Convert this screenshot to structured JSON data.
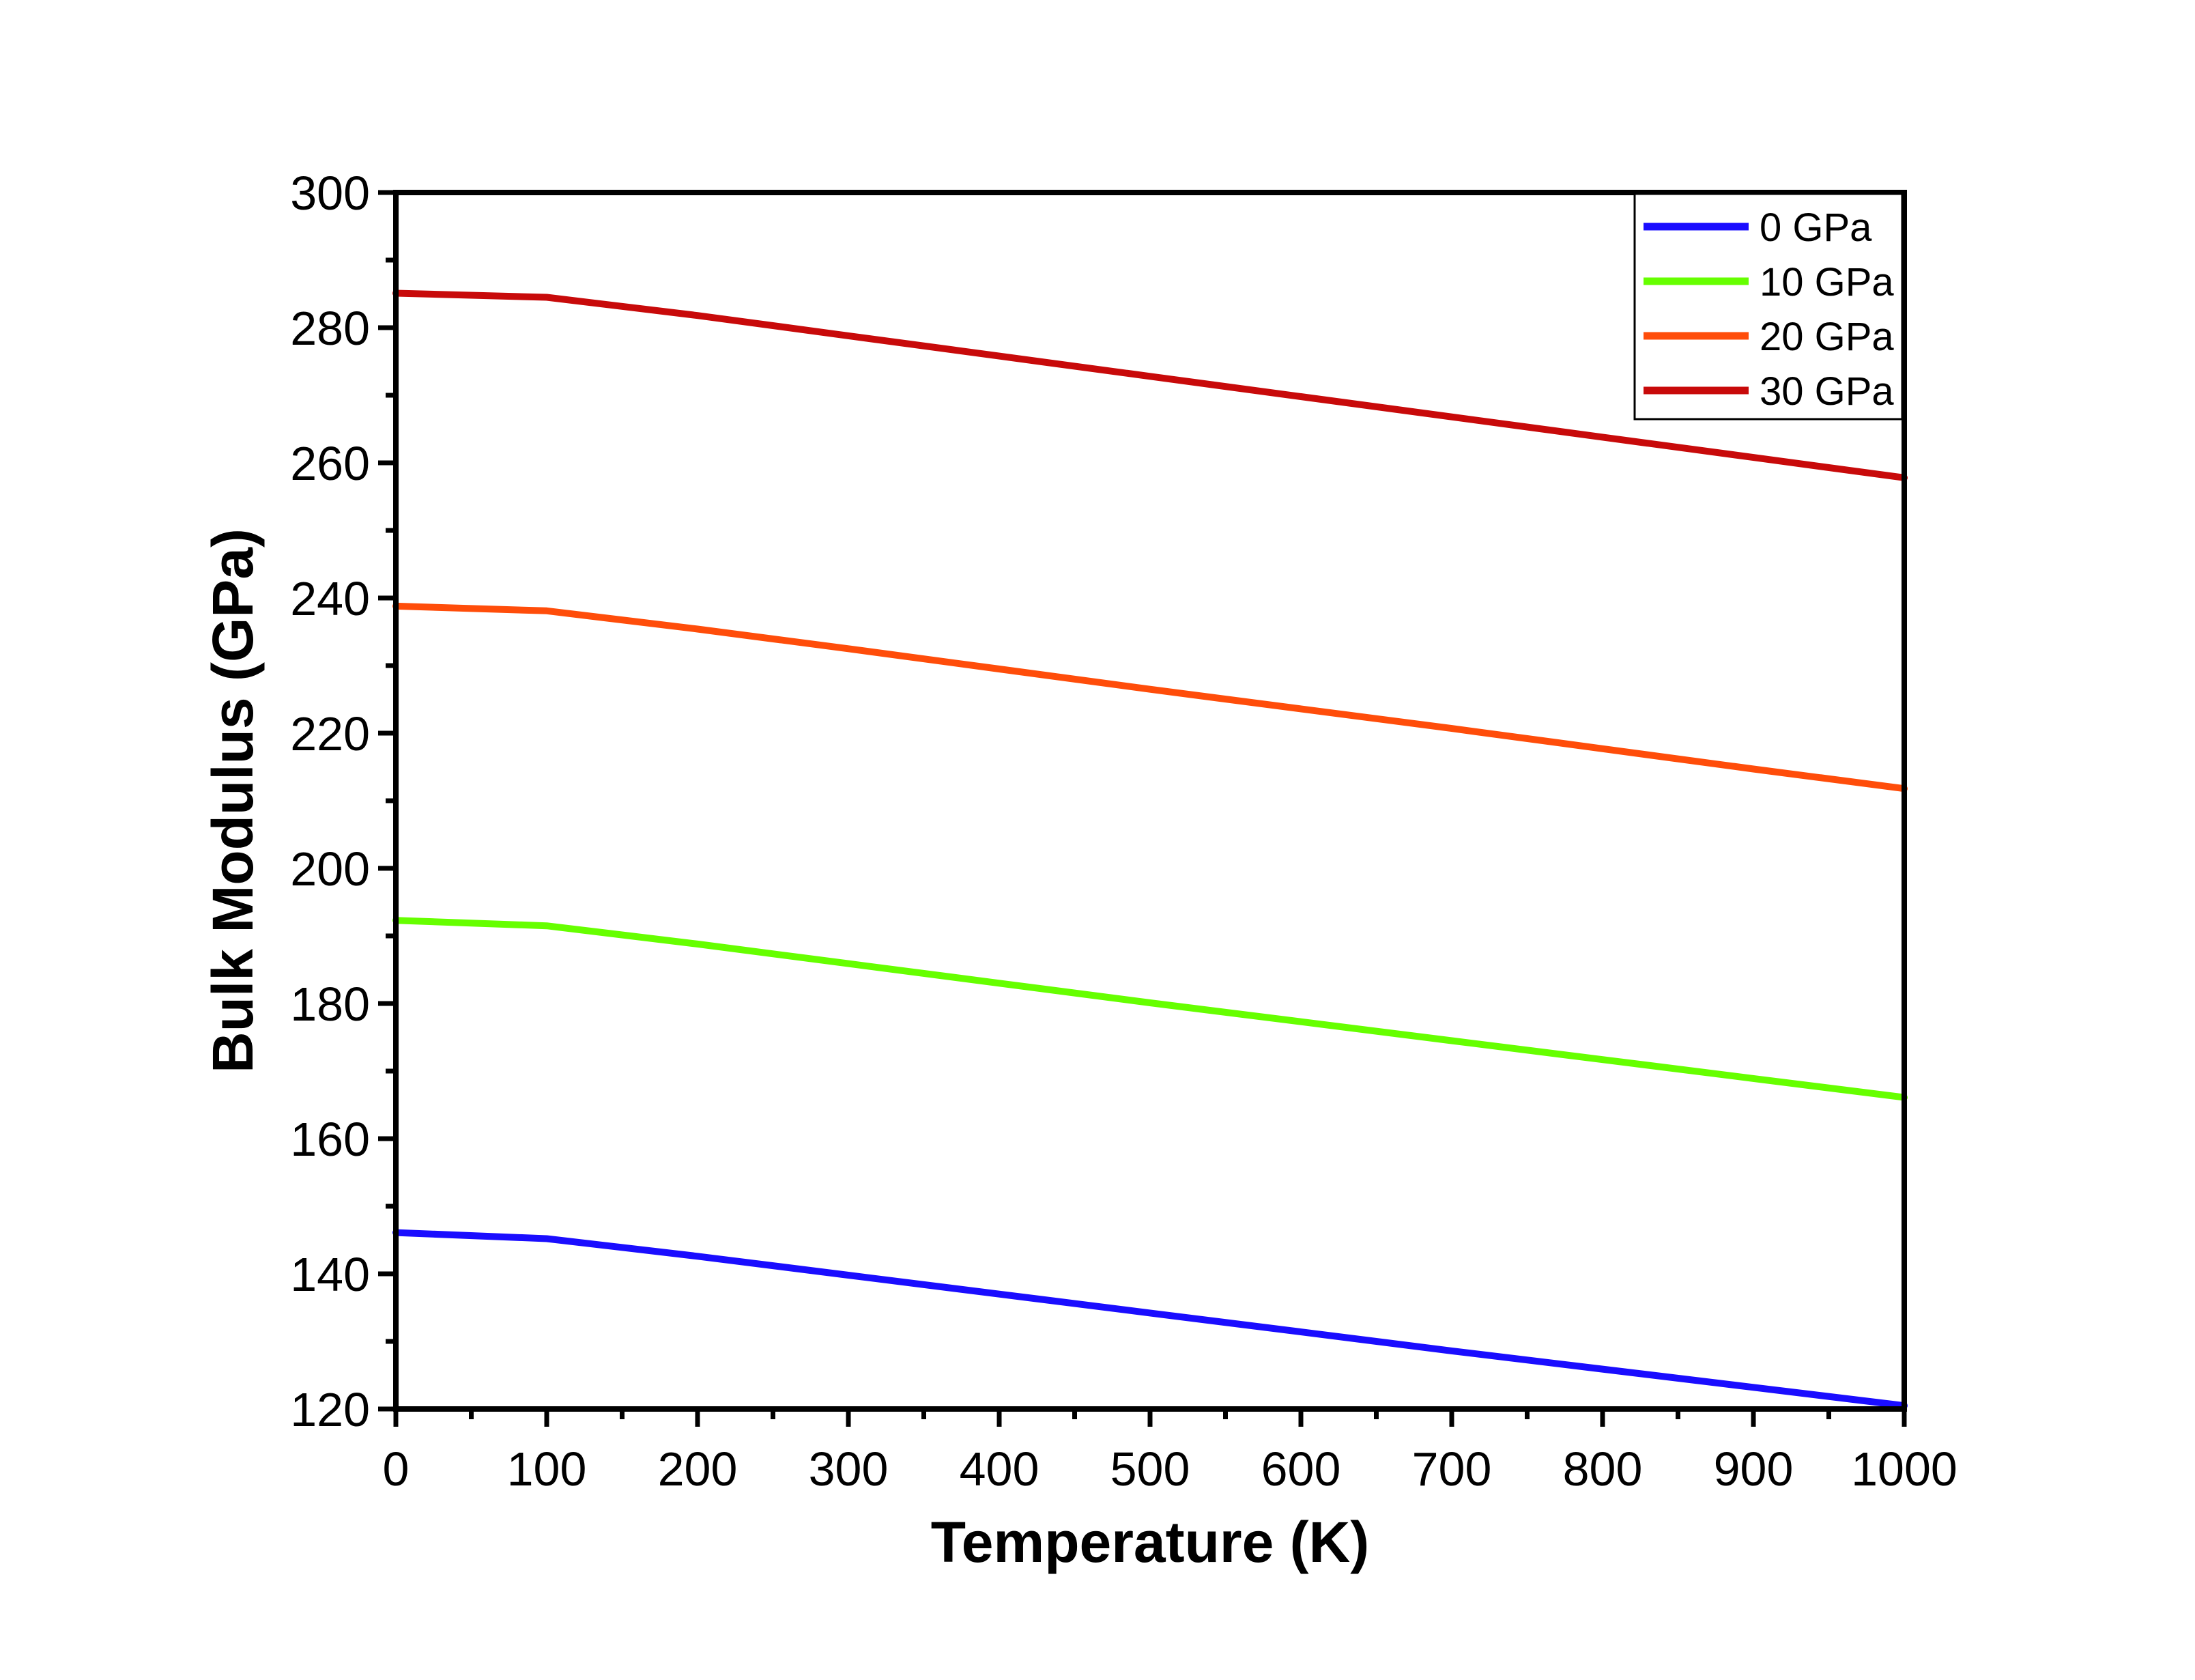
{
  "chart_data": {
    "type": "line",
    "title": "",
    "xlabel": "Temperature (K)",
    "ylabel": "Bulk Modulus (GPa)",
    "xlim": [
      0,
      1000
    ],
    "ylim": [
      120,
      300
    ],
    "x_ticks": [
      "0",
      "100",
      "200",
      "300",
      "400",
      "500",
      "600",
      "700",
      "800",
      "900",
      "1000"
    ],
    "y_ticks": [
      "120",
      "140",
      "160",
      "180",
      "200",
      "220",
      "240",
      "260",
      "280",
      "300"
    ],
    "grid": false,
    "legend_position": "top-right",
    "x": [
      0,
      100,
      200,
      300,
      400,
      500,
      600,
      700,
      800,
      900,
      1000
    ],
    "series": [
      {
        "name": "0 GPa",
        "color": "#1a0dff",
        "values": [
          146.1,
          145.2,
          142.6,
          139.8,
          137.0,
          134.2,
          131.4,
          128.6,
          125.9,
          123.2,
          120.5
        ]
      },
      {
        "name": "10 GPa",
        "color": "#66ff00",
        "values": [
          192.3,
          191.5,
          188.8,
          185.9,
          183.0,
          180.1,
          177.3,
          174.5,
          171.7,
          168.9,
          166.1
        ]
      },
      {
        "name": "20 GPa",
        "color": "#ff4d0a",
        "values": [
          238.8,
          238.1,
          235.4,
          232.5,
          229.5,
          226.5,
          223.6,
          220.7,
          217.7,
          214.7,
          211.8
        ]
      },
      {
        "name": "30 GPa",
        "color": "#c80a0a",
        "values": [
          285.1,
          284.5,
          281.8,
          278.8,
          275.8,
          272.8,
          269.8,
          266.8,
          263.8,
          260.8,
          257.8
        ]
      }
    ]
  }
}
